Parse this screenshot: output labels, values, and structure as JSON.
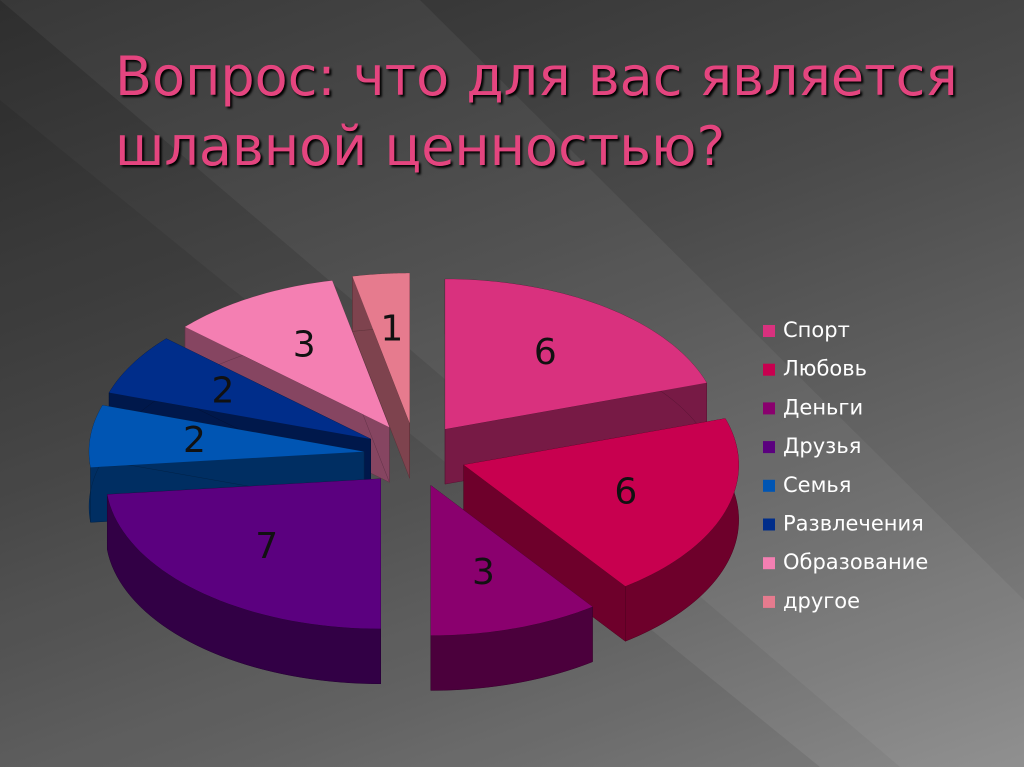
{
  "chart_data": {
    "type": "pie3d",
    "title": "Вопрос: что для вас является шлавной ценностью?",
    "categories": [
      "Спорт",
      "Любовь",
      "Деньги",
      "Друзья",
      "Семья",
      "Развлечения",
      "Образование",
      "другое"
    ],
    "values": [
      6,
      6,
      3,
      7,
      2,
      2,
      3,
      1
    ],
    "colors": [
      "#d9317e",
      "#c8004f",
      "#8a006e",
      "#5b007f",
      "#0055b3",
      "#002d8a",
      "#f47fb2",
      "#e67b8e"
    ],
    "legend": "right"
  }
}
